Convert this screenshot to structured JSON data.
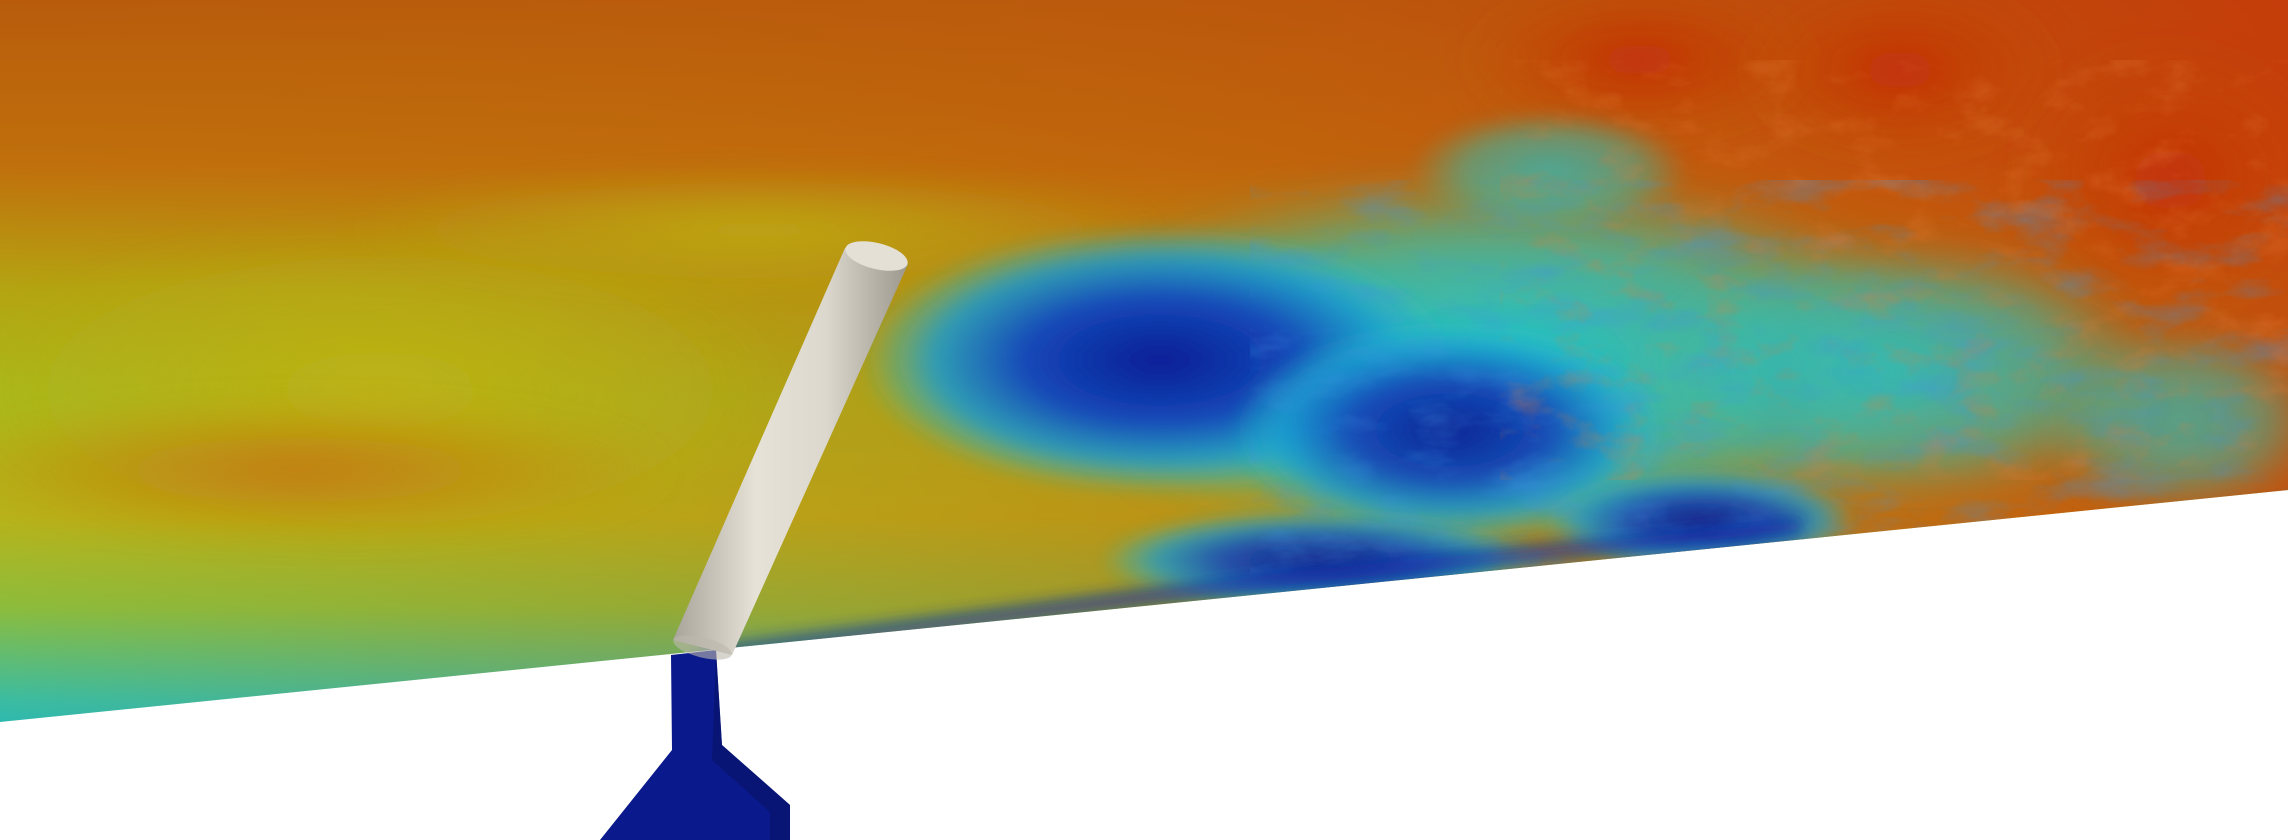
{
  "visualization": {
    "subject": "velocity-field-contour",
    "colormap": "rainbow",
    "colors": {
      "background": "#ffffff",
      "very_low": "#0a1e96",
      "low": "#1e50c8",
      "mid_low": "#1ec8d2",
      "mid": "#b4be1e",
      "mid_high": "#c87814",
      "high": "#c82d0a",
      "rod": "#d6d2c8",
      "injector": "#0a1a8c"
    },
    "icons": {
      "rod": "cylinder-icon",
      "injector": "nozzle-icon"
    }
  }
}
